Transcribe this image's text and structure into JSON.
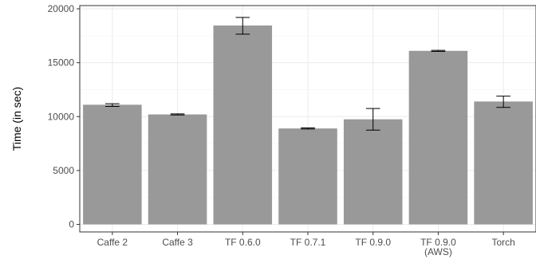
{
  "chart_data": {
    "type": "bar",
    "title": "",
    "xlabel": "",
    "ylabel": "Time (in sec)",
    "categories": [
      "Caffe 2",
      "Caffe 3",
      "TF 0.6.0",
      "TF 0.7.1",
      "TF 0.9.0",
      "TF 0.9.0\n(AWS)",
      "Torch"
    ],
    "values": [
      11100,
      10200,
      18450,
      8900,
      9750,
      16100,
      11400
    ],
    "error_low": [
      10950,
      10150,
      17650,
      8850,
      8750,
      16050,
      10850
    ],
    "error_high": [
      11200,
      10250,
      19200,
      8950,
      10750,
      16150,
      11900
    ],
    "ylim": [
      -700,
      20300
    ],
    "yticks": [
      0,
      5000,
      10000,
      15000,
      20000
    ],
    "ytick_labels": [
      "0",
      "5000",
      "10000",
      "15000",
      "20000"
    ],
    "grid": true,
    "legend": "none",
    "bar_color": "#999999",
    "panel_background": "#ffffff",
    "grid_color": "#ebebeb"
  }
}
